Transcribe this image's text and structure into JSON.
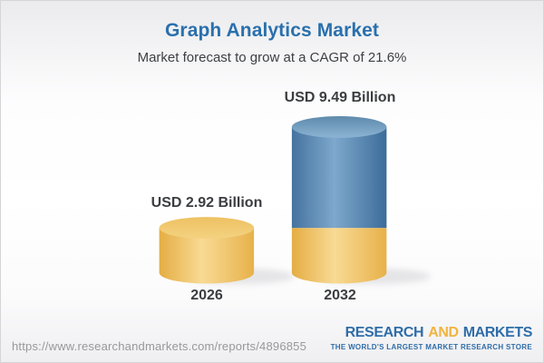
{
  "header": {
    "title": "Graph Analytics Market",
    "subtitle": "Market forecast to grow at a CAGR of 21.6%"
  },
  "chart_data": {
    "type": "bar",
    "title": "Graph Analytics Market",
    "subtitle": "Market forecast to grow at a CAGR of 21.6%",
    "unit": "USD Billion",
    "cagr_pct": 21.6,
    "categories": [
      "2026",
      "2032"
    ],
    "values": [
      2.92,
      9.49
    ],
    "bars": [
      {
        "category": "2026",
        "label": "USD 2.92 Billion",
        "segments": [
          {
            "value": 2.92,
            "color": "gold"
          }
        ]
      },
      {
        "category": "2032",
        "label": "USD 9.49 Billion",
        "segments": [
          {
            "value": 2.92,
            "color": "gold"
          },
          {
            "value": 6.57,
            "color": "blue"
          }
        ]
      }
    ],
    "legend": "none",
    "grid": false
  },
  "footer": {
    "url": "https://www.researchandmarkets.com/reports/4896855",
    "logo": {
      "part1": "RESEARCH",
      "part2": "AND",
      "part3": "MARKETS",
      "tagline": "THE WORLD'S LARGEST MARKET RESEARCH STORE"
    }
  },
  "colors": {
    "title_blue": "#2a70ad",
    "label_dark": "#3b3d40",
    "gold_edge": "#e8b14a",
    "gold_mid": "#f8da94",
    "gold_cap_top": "#eec162",
    "gold_cap_bottom": "#f4d281",
    "blue_edge": "#3c6c9a",
    "blue_mid": "#7ea8cc",
    "blue_cap_top": "#5e8aab",
    "blue_cap_bottom": "#8cb3d4",
    "url_gray": "#98989a",
    "logo_blue": "#2f6da8",
    "logo_gold": "#f0b440"
  }
}
